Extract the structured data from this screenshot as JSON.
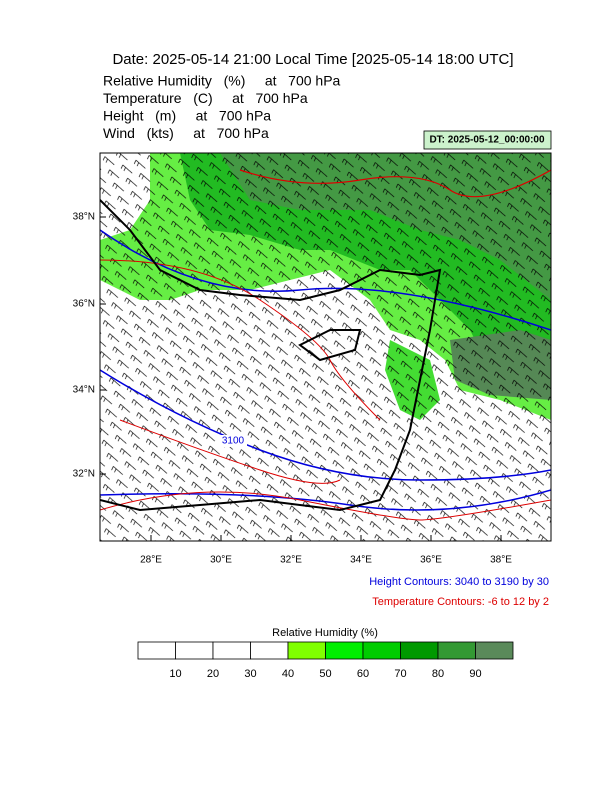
{
  "header": {
    "title": "Date: 2025-05-14  21:00 Local Time [2025-05-14  18:00 UTC]",
    "fields": [
      "Relative Humidity   (%)     at   700 hPa",
      "Temperature   (C)     at   700 hPa",
      "Height   (m)     at   700 hPa",
      "Wind   (kts)     at   700 hPa"
    ],
    "dt_label": "DT: 2025-05-12_00:00:00"
  },
  "map": {
    "lat_labels": [
      "38°N",
      "36°N",
      "34°N",
      "32°N"
    ],
    "lon_labels": [
      "28°E",
      "30°E",
      "32°E",
      "34°E",
      "36°E",
      "38°E"
    ],
    "contour_labels": [
      "3100"
    ]
  },
  "notes": {
    "height_contours": "Height Contours: 3040 to 3190 by 30",
    "temperature_contours": "Temperature Contours: -6 to 12 by 2"
  },
  "colorbar": {
    "title": "Relative Humidity  (%)",
    "labels": [
      10,
      20,
      30,
      40,
      50,
      60,
      70,
      80,
      90
    ],
    "colors": [
      "#ffffff",
      "#ffffff",
      "#ffffff",
      "#ffffff",
      "#80ff00",
      "#00ee00",
      "#00cc00",
      "#009900",
      "#339933",
      "#5a8a5a"
    ]
  }
}
